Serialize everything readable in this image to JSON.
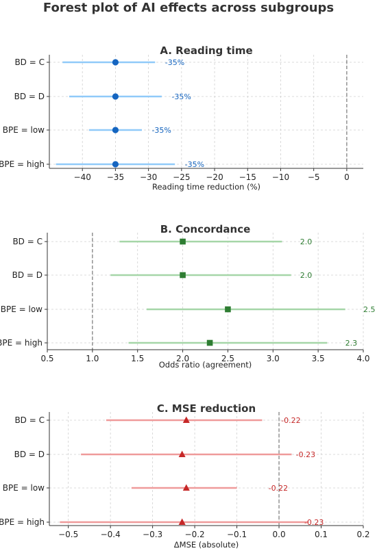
{
  "figure_title": "Forest plot of AI effects across subgroups",
  "chart_data": [
    {
      "type": "forest",
      "title": "A. Reading time",
      "xlabel": "Reading time reduction (%)",
      "ylabel": "",
      "xlim": [
        -45,
        2.5
      ],
      "xticks": [
        -40,
        -35,
        -30,
        -25,
        -20,
        -15,
        -10,
        -5,
        0
      ],
      "tick_labels": [
        "−40",
        "−35",
        "−30",
        "−25",
        "−20",
        "−15",
        "−10",
        "−5",
        "0"
      ],
      "reference_line": 0,
      "grid": true,
      "marker": "circle",
      "point_color": "#1565c0",
      "ci_color": "#90caf9",
      "label_color": "#1565c0",
      "rows": [
        {
          "label": "BD = C",
          "estimate": -35,
          "ci_low": -43,
          "ci_high": -29,
          "annotation": "-35%",
          "annotation_x": -27.5
        },
        {
          "label": "BD = D",
          "estimate": -35,
          "ci_low": -42,
          "ci_high": -28,
          "annotation": "-35%",
          "annotation_x": -26.5
        },
        {
          "label": "BPE = low",
          "estimate": -35,
          "ci_low": -39,
          "ci_high": -31,
          "annotation": "-35%",
          "annotation_x": -29.5
        },
        {
          "label": "BPE = high",
          "estimate": -35,
          "ci_low": -44,
          "ci_high": -26,
          "annotation": "-35%",
          "annotation_x": -24.5
        }
      ]
    },
    {
      "type": "forest",
      "title": "B. Concordance",
      "xlabel": "Odds ratio (agreement)",
      "ylabel": "",
      "xlim": [
        0.5,
        4.0
      ],
      "xticks": [
        0.5,
        1.0,
        1.5,
        2.0,
        2.5,
        3.0,
        3.5,
        4.0
      ],
      "tick_labels": [
        "0.5",
        "1.0",
        "1.5",
        "2.0",
        "2.5",
        "3.0",
        "3.5",
        "4.0"
      ],
      "reference_line": 1.0,
      "grid": true,
      "marker": "square",
      "point_color": "#2e7d32",
      "ci_color": "#a5d6a7",
      "label_color": "#2e7d32",
      "rows": [
        {
          "label": "BD = C",
          "estimate": 2.0,
          "ci_low": 1.3,
          "ci_high": 3.1,
          "annotation": "2.0",
          "annotation_x": 3.3
        },
        {
          "label": "BD = D",
          "estimate": 2.0,
          "ci_low": 1.2,
          "ci_high": 3.2,
          "annotation": "2.0",
          "annotation_x": 3.3
        },
        {
          "label": "BPE = low",
          "estimate": 2.5,
          "ci_low": 1.6,
          "ci_high": 3.8,
          "annotation": "2.5",
          "annotation_x": 4.0
        },
        {
          "label": "BPE = high",
          "estimate": 2.3,
          "ci_low": 1.4,
          "ci_high": 3.6,
          "annotation": "2.3",
          "annotation_x": 3.8
        }
      ]
    },
    {
      "type": "forest",
      "title": "C. MSE reduction",
      "xlabel": "ΔMSE (absolute)",
      "ylabel": "",
      "xlim": [
        -0.545,
        0.2
      ],
      "xticks": [
        -0.5,
        -0.4,
        -0.3,
        -0.2,
        -0.1,
        0.0,
        0.1,
        0.2
      ],
      "tick_labels": [
        "−0.5",
        "−0.4",
        "−0.3",
        "−0.2",
        "−0.1",
        "0.0",
        "0.1",
        "0.2"
      ],
      "reference_line": 0.0,
      "grid": true,
      "marker": "triangle",
      "point_color": "#c62828",
      "ci_color": "#ef9a9a",
      "label_color": "#c62828",
      "rows": [
        {
          "label": "BD = C",
          "estimate": -0.22,
          "ci_low": -0.41,
          "ci_high": -0.04,
          "annotation": "-0.22",
          "annotation_x": 0.005
        },
        {
          "label": "BD = D",
          "estimate": -0.23,
          "ci_low": -0.47,
          "ci_high": 0.03,
          "annotation": "-0.23",
          "annotation_x": 0.04
        },
        {
          "label": "BPE = low",
          "estimate": -0.22,
          "ci_low": -0.35,
          "ci_high": -0.1,
          "annotation": "-0.22",
          "annotation_x": -0.025
        },
        {
          "label": "BPE = high",
          "estimate": -0.23,
          "ci_low": -0.52,
          "ci_high": 0.07,
          "annotation": "-0.23",
          "annotation_x": 0.06
        }
      ]
    }
  ]
}
